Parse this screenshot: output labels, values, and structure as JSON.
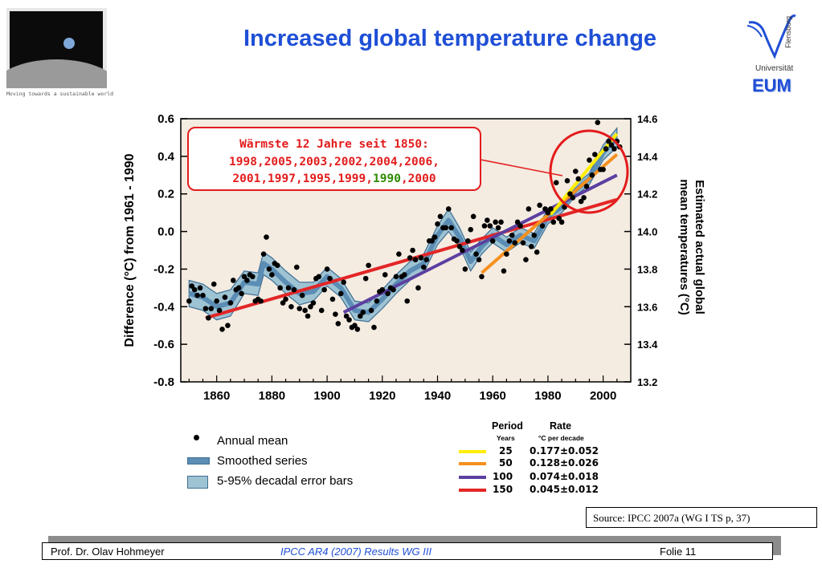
{
  "page": {
    "title": "Increased global temperature change",
    "tagline": "Moving towards a sustainable world",
    "university": "Universität",
    "university_vertical": "Flensburg",
    "institute": "EUM",
    "source": "Source: IPCC 2007a (WG I TS p, 37)",
    "footer": {
      "author": "Prof. Dr. Olav Hohmeyer",
      "report": "IPCC AR4 (2007) Results WG III",
      "slide": "Folie 11"
    },
    "colors": {
      "title": "#1f4fd6",
      "annotation": "#e31c1c",
      "highlight_year": "#2e8b00"
    }
  },
  "chart_data": {
    "type": "scatter",
    "xlim": [
      1847,
      2010
    ],
    "ylim": [
      -0.8,
      0.6
    ],
    "ylim_right": [
      13.2,
      14.6
    ],
    "x_ticks": [
      "1860",
      "1880",
      "1900",
      "1920",
      "1940",
      "1960",
      "1980",
      "2000"
    ],
    "y_ticks": [
      "0.6",
      "0.4",
      "0.2",
      "0.0",
      "-0.2",
      "-0.4",
      "-0.6",
      "-0.8"
    ],
    "y_ticks_right": [
      "14.6",
      "14.4",
      "14.2",
      "14.0",
      "13.8",
      "13.6",
      "13.4",
      "13.2"
    ],
    "ylabel": "Difference (°C) from 1961 - 1990",
    "ylabel_right_line1": "Estimated actual global",
    "ylabel_right_line2": "mean temperatures (°C)",
    "annotation": {
      "line1": "Wärmste 12 Jahre seit 1850:",
      "line2": "1998,2005,2003,2002,2004,2006,",
      "line3_before": "2001,1997,1995,1999,",
      "line3_highlight": "1990",
      "line3_after": ",2000"
    },
    "annual_mean": {
      "name": "Annual mean",
      "x": [
        1850,
        1851,
        1852,
        1853,
        1854,
        1855,
        1856,
        1857,
        1858,
        1859,
        1860,
        1861,
        1862,
        1863,
        1864,
        1865,
        1866,
        1867,
        1868,
        1869,
        1870,
        1871,
        1872,
        1873,
        1874,
        1875,
        1876,
        1877,
        1878,
        1879,
        1880,
        1881,
        1882,
        1883,
        1884,
        1885,
        1886,
        1887,
        1888,
        1889,
        1890,
        1891,
        1892,
        1893,
        1894,
        1895,
        1896,
        1897,
        1898,
        1899,
        1900,
        1901,
        1902,
        1903,
        1904,
        1905,
        1906,
        1907,
        1908,
        1909,
        1910,
        1911,
        1912,
        1913,
        1914,
        1915,
        1916,
        1917,
        1918,
        1919,
        1920,
        1921,
        1922,
        1923,
        1924,
        1925,
        1926,
        1927,
        1928,
        1929,
        1930,
        1931,
        1932,
        1933,
        1934,
        1935,
        1936,
        1937,
        1938,
        1939,
        1940,
        1941,
        1942,
        1943,
        1944,
        1945,
        1946,
        1947,
        1948,
        1949,
        1950,
        1951,
        1952,
        1953,
        1954,
        1955,
        1956,
        1957,
        1958,
        1959,
        1960,
        1961,
        1962,
        1963,
        1964,
        1965,
        1966,
        1967,
        1968,
        1969,
        1970,
        1971,
        1972,
        1973,
        1974,
        1975,
        1976,
        1977,
        1978,
        1979,
        1980,
        1981,
        1982,
        1983,
        1984,
        1985,
        1986,
        1987,
        1988,
        1989,
        1990,
        1991,
        1992,
        1993,
        1994,
        1995,
        1996,
        1997,
        1998,
        1999,
        2000,
        2001,
        2002,
        2003,
        2004,
        2005,
        2006
      ],
      "y": [
        -0.37,
        -0.29,
        -0.31,
        -0.34,
        -0.3,
        -0.34,
        -0.41,
        -0.46,
        -0.41,
        -0.28,
        -0.37,
        -0.42,
        -0.52,
        -0.35,
        -0.5,
        -0.38,
        -0.26,
        -0.31,
        -0.3,
        -0.33,
        -0.24,
        -0.26,
        -0.23,
        -0.24,
        -0.37,
        -0.36,
        -0.37,
        -0.12,
        -0.03,
        -0.2,
        -0.23,
        -0.17,
        -0.18,
        -0.3,
        -0.38,
        -0.36,
        -0.3,
        -0.4,
        -0.31,
        -0.19,
        -0.41,
        -0.34,
        -0.42,
        -0.45,
        -0.4,
        -0.38,
        -0.25,
        -0.24,
        -0.42,
        -0.31,
        -0.2,
        -0.25,
        -0.36,
        -0.44,
        -0.49,
        -0.33,
        -0.27,
        -0.45,
        -0.47,
        -0.51,
        -0.5,
        -0.52,
        -0.45,
        -0.43,
        -0.25,
        -0.18,
        -0.42,
        -0.51,
        -0.37,
        -0.32,
        -0.31,
        -0.23,
        -0.33,
        -0.3,
        -0.31,
        -0.24,
        -0.12,
        -0.24,
        -0.23,
        -0.37,
        -0.14,
        -0.1,
        -0.15,
        -0.3,
        -0.14,
        -0.19,
        -0.15,
        -0.05,
        -0.05,
        -0.03,
        0.04,
        0.08,
        0.02,
        0.02,
        0.12,
        0.02,
        -0.04,
        -0.05,
        -0.08,
        -0.1,
        -0.2,
        -0.05,
        0.01,
        0.08,
        -0.12,
        -0.15,
        -0.24,
        0.03,
        0.06,
        0.03,
        -0.05,
        0.05,
        0.02,
        0.05,
        -0.21,
        -0.12,
        -0.05,
        -0.02,
        -0.06,
        0.05,
        0.03,
        -0.06,
        -0.15,
        0.12,
        -0.08,
        -0.02,
        -0.11,
        0.14,
        0.03,
        0.12,
        0.1,
        0.12,
        0.05,
        0.26,
        0.07,
        0.05,
        0.13,
        0.27,
        0.2,
        0.18,
        0.32,
        0.28,
        0.16,
        0.18,
        0.24,
        0.38,
        0.3,
        0.41,
        0.58,
        0.33,
        0.33,
        0.44,
        0.48,
        0.46,
        0.44,
        0.48,
        0.45
      ]
    },
    "smoothed_series": {
      "name": "Smoothed series",
      "x": [
        1850,
        1855,
        1860,
        1865,
        1870,
        1875,
        1877,
        1880,
        1885,
        1890,
        1895,
        1900,
        1905,
        1910,
        1915,
        1920,
        1925,
        1930,
        1935,
        1940,
        1944,
        1948,
        1952,
        1956,
        1960,
        1965,
        1970,
        1975,
        1980,
        1985,
        1990,
        1995,
        2000,
        2005
      ],
      "y": [
        -0.33,
        -0.35,
        -0.4,
        -0.38,
        -0.27,
        -0.28,
        -0.17,
        -0.2,
        -0.27,
        -0.33,
        -0.32,
        -0.24,
        -0.3,
        -0.42,
        -0.43,
        -0.36,
        -0.28,
        -0.21,
        -0.17,
        -0.02,
        0.06,
        -0.03,
        -0.16,
        -0.08,
        -0.02,
        -0.07,
        -0.02,
        -0.05,
        0.08,
        0.13,
        0.22,
        0.28,
        0.42,
        0.5
      ],
      "error": [
        0.07,
        0.07,
        0.07,
        0.07,
        0.06,
        0.06,
        0.06,
        0.06,
        0.06,
        0.06,
        0.05,
        0.05,
        0.05,
        0.05,
        0.05,
        0.05,
        0.05,
        0.05,
        0.05,
        0.05,
        0.06,
        0.05,
        0.05,
        0.04,
        0.04,
        0.04,
        0.04,
        0.04,
        0.04,
        0.03,
        0.03,
        0.03,
        0.04,
        0.05
      ]
    },
    "error_bars_label": "5-95% decadal error bars",
    "trend_header": {
      "period": "Period",
      "rate": "Rate",
      "years": "Years",
      "rate_unit": "°C per decade"
    },
    "trends": [
      {
        "period": "25",
        "rate": "0.177±0.052",
        "color": "#ffee00",
        "x": [
          1981,
          2005
        ],
        "y": [
          0.09,
          0.52
        ]
      },
      {
        "period": "50",
        "rate": "0.128±0.026",
        "color": "#f5901e",
        "x": [
          1956,
          2005
        ],
        "y": [
          -0.22,
          0.41
        ]
      },
      {
        "period": "100",
        "rate": "0.074±0.018",
        "color": "#5b3fa0",
        "x": [
          1906,
          2005
        ],
        "y": [
          -0.43,
          0.3
        ]
      },
      {
        "period": "150",
        "rate": "0.045±0.012",
        "color": "#e32626",
        "x": [
          1856,
          2005
        ],
        "y": [
          -0.46,
          0.17
        ]
      }
    ]
  }
}
